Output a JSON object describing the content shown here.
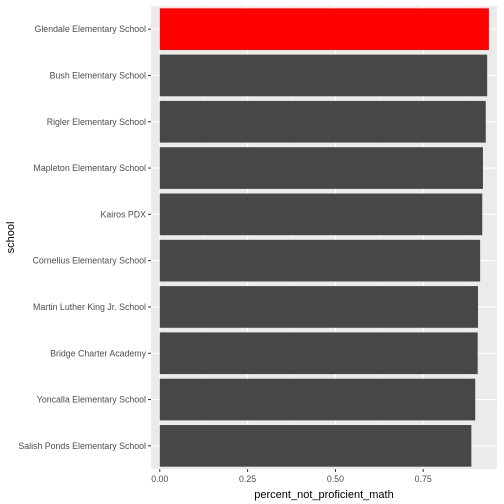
{
  "chart_data": {
    "type": "bar",
    "orientation": "horizontal",
    "xlabel": "percent_not_proficient_math",
    "ylabel": "school",
    "xlim": [
      -0.025,
      0.96
    ],
    "x_ticks": [
      0.0,
      0.25,
      0.5,
      0.75
    ],
    "x_tick_labels": [
      "0.00",
      "0.25",
      "0.50",
      "0.75"
    ],
    "grid": true,
    "categories": [
      "Glendale Elementary School",
      "Bush Elementary School",
      "Rigler Elementary School",
      "Mapleton Elementary School",
      "Kairos PDX",
      "Cornelius Elementary School",
      "Martin Luther King Jr. School",
      "Bridge Charter Academy",
      "Yoncalla Elementary School",
      "Salish Ponds Elementary School"
    ],
    "values": [
      0.937,
      0.932,
      0.928,
      0.92,
      0.918,
      0.912,
      0.906,
      0.905,
      0.898,
      0.887
    ],
    "highlight_index": 0,
    "colors": {
      "bar": "#474747",
      "highlight": "#ff0000",
      "panel": "#ebebeb",
      "grid_major": "#ffffff",
      "grid_minor": "#f5f5f5",
      "tick_text": "#4d4d4d",
      "tick_mark": "#333333"
    }
  }
}
